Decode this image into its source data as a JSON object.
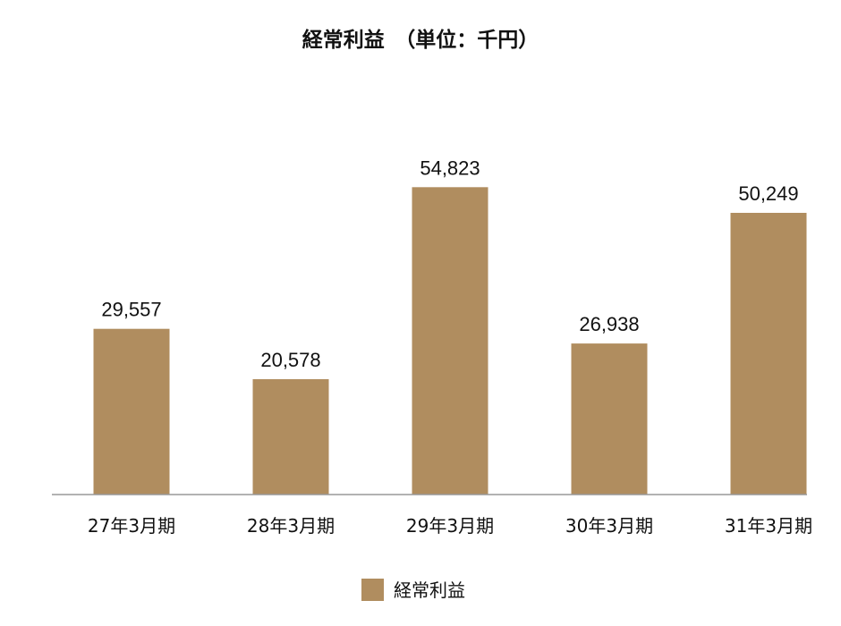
{
  "chart_data": {
    "type": "bar",
    "title": "経常利益　（単位：千円）",
    "categories": [
      "27年3月期",
      "28年3月期",
      "29年3月期",
      "30年3月期",
      "31年3月期"
    ],
    "series": [
      {
        "name": "経常利益",
        "values": [
          29557,
          20578,
          54823,
          26938,
          50249
        ],
        "value_labels": [
          "29,557",
          "20,578",
          "54,823",
          "26,938",
          "50,249"
        ]
      }
    ],
    "ylim": [
      0,
      67000
    ],
    "grid": false,
    "legend_position": "bottom-center",
    "bar_color": "#b08d5f",
    "axis_color": "#999999"
  }
}
